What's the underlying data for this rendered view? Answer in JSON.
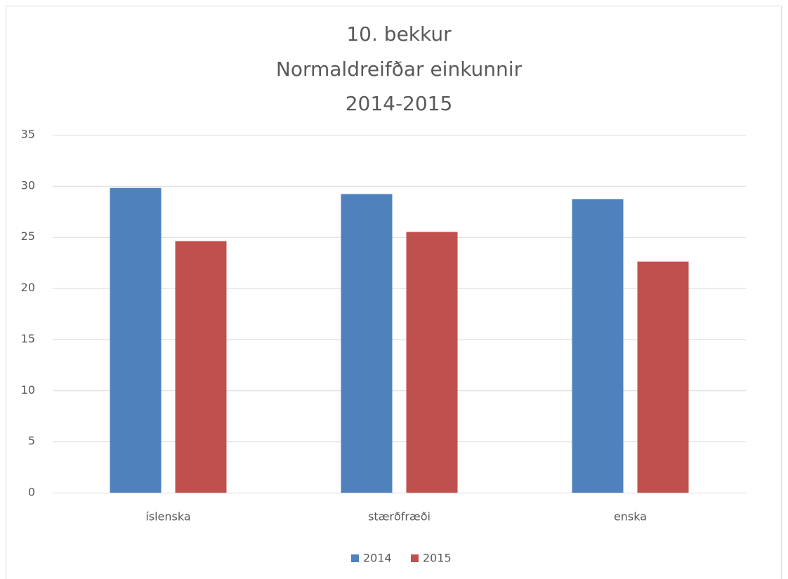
{
  "chart_data": {
    "type": "bar",
    "title": [
      "10. bekkur",
      "Normaldreifðar einkunnir",
      "2014-2015"
    ],
    "categories": [
      "íslenska",
      "stærðfræði",
      "enska"
    ],
    "series": [
      {
        "name": "2014",
        "color": "#4f81bd",
        "values": [
          29.8,
          29.2,
          28.7
        ]
      },
      {
        "name": "2015",
        "color": "#c0504d",
        "values": [
          24.6,
          25.5,
          22.6
        ]
      }
    ],
    "ylim": [
      0,
      35
    ],
    "yticks": [
      0,
      5,
      10,
      15,
      20,
      25,
      30,
      35
    ],
    "grid": true,
    "legend": "bottom"
  }
}
